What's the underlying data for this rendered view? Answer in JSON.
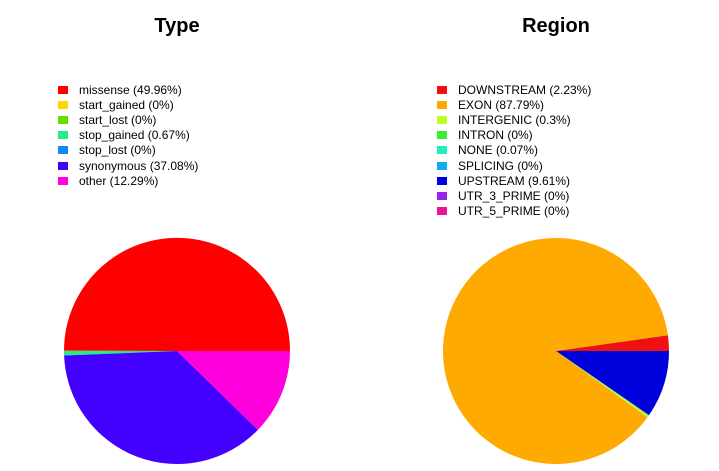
{
  "chart_data": [
    {
      "type": "pie",
      "title": "Type",
      "slices": [
        {
          "label": "missense (49.96%)",
          "value": 49.96,
          "color": "#ff0000"
        },
        {
          "label": "start_gained (0%)",
          "value": 0,
          "color": "#ffd700"
        },
        {
          "label": "start_lost (0%)",
          "value": 0,
          "color": "#66dd00"
        },
        {
          "label": "stop_gained (0.67%)",
          "value": 0.67,
          "color": "#22ee88"
        },
        {
          "label": "stop_lost (0%)",
          "value": 0,
          "color": "#1188ee"
        },
        {
          "label": "synonymous (37.08%)",
          "value": 37.08,
          "color": "#4400ff"
        },
        {
          "label": "other (12.29%)",
          "value": 12.29,
          "color": "#ff00dd"
        }
      ],
      "legend_position": "top-left"
    },
    {
      "type": "pie",
      "title": "Region",
      "slices": [
        {
          "label": "DOWNSTREAM (2.23%)",
          "value": 2.23,
          "color": "#ee1111"
        },
        {
          "label": "EXON (87.79%)",
          "value": 87.79,
          "color": "#ffaa00"
        },
        {
          "label": "INTERGENIC (0.3%)",
          "value": 0.3,
          "color": "#bbff22"
        },
        {
          "label": "INTRON (0%)",
          "value": 0,
          "color": "#33ee33"
        },
        {
          "label": "NONE (0.07%)",
          "value": 0.07,
          "color": "#22eebb"
        },
        {
          "label": "SPLICING (0%)",
          "value": 0,
          "color": "#11aaee"
        },
        {
          "label": "UPSTREAM (9.61%)",
          "value": 9.61,
          "color": "#0000dd"
        },
        {
          "label": "UTR_3_PRIME (0%)",
          "value": 0,
          "color": "#9922ee"
        },
        {
          "label": "UTR_5_PRIME (0%)",
          "value": 0,
          "color": "#ee1199"
        }
      ],
      "legend_position": "top-left"
    }
  ]
}
